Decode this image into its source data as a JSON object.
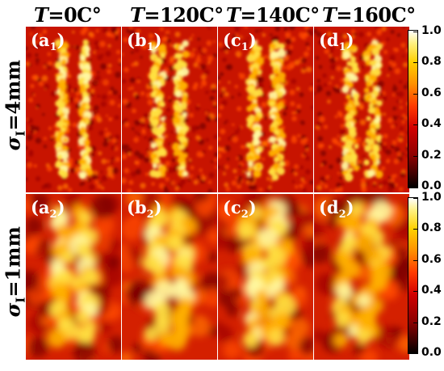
{
  "columns": [
    {
      "var": "T",
      "value": "=0C°"
    },
    {
      "var": "T",
      "value": "=120C°"
    },
    {
      "var": "T",
      "value": "=140C°"
    },
    {
      "var": "T",
      "value": "=160C°"
    }
  ],
  "rows": [
    {
      "var": "σ",
      "sub": "I",
      "value": "=4mm"
    },
    {
      "var": "σ",
      "sub": "I",
      "value": "=1mm"
    }
  ],
  "panels": [
    {
      "letter": "(a",
      "sub": "1",
      "close": ")"
    },
    {
      "letter": "(b",
      "sub": "1",
      "close": ")"
    },
    {
      "letter": "(c",
      "sub": "1",
      "close": ")"
    },
    {
      "letter": "(d",
      "sub": "1",
      "close": ")"
    },
    {
      "letter": "(a",
      "sub": "2",
      "close": ")"
    },
    {
      "letter": "(b",
      "sub": "2",
      "close": ")"
    },
    {
      "letter": "(c",
      "sub": "2",
      "close": ")"
    },
    {
      "letter": "(d",
      "sub": "2",
      "close": ")"
    }
  ],
  "colorbars": [
    {
      "ticks": [
        "1.0",
        "0.8",
        "0.6",
        "0.4",
        "0.2",
        "0.0"
      ]
    },
    {
      "ticks": [
        "1.0",
        "0.8",
        "0.6",
        "0.4",
        "0.2",
        "0.0"
      ]
    }
  ]
}
